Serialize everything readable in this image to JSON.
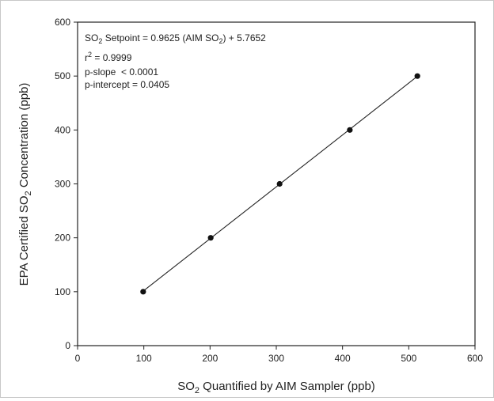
{
  "chart_data": {
    "type": "scatter",
    "title": "",
    "xlabel": {
      "pre": "SO",
      "sub": "2",
      "post": " Quantified by AIM Sampler (ppb)"
    },
    "ylabel": {
      "pre": "EPA Certified SO",
      "sub": "2",
      "post": " Concentration (ppb)"
    },
    "xlim": [
      0,
      600
    ],
    "ylim": [
      0,
      600
    ],
    "xticks": [
      0,
      100,
      200,
      300,
      400,
      500,
      600
    ],
    "yticks": [
      0,
      100,
      200,
      300,
      400,
      500,
      600
    ],
    "grid": false,
    "series": [
      {
        "x": [
          99,
          201,
          305,
          411,
          513
        ],
        "y": [
          100,
          200,
          300,
          400,
          500
        ]
      }
    ],
    "fit_line": {
      "slope": 0.9625,
      "intercept": 5.7652,
      "x_range": [
        99,
        513
      ]
    },
    "annotations": {
      "equation": {
        "a": "SO",
        "b": "2",
        "c": " Setpoint = 0.9625 (AIM SO",
        "d": "2",
        "e": ") + 5.7652"
      },
      "r2": {
        "a": "r",
        "b": "2",
        "c": " = 0.9999"
      },
      "p_slope": "p-slope  < 0.0001",
      "p_intercept": "p-intercept = 0.0405"
    }
  }
}
